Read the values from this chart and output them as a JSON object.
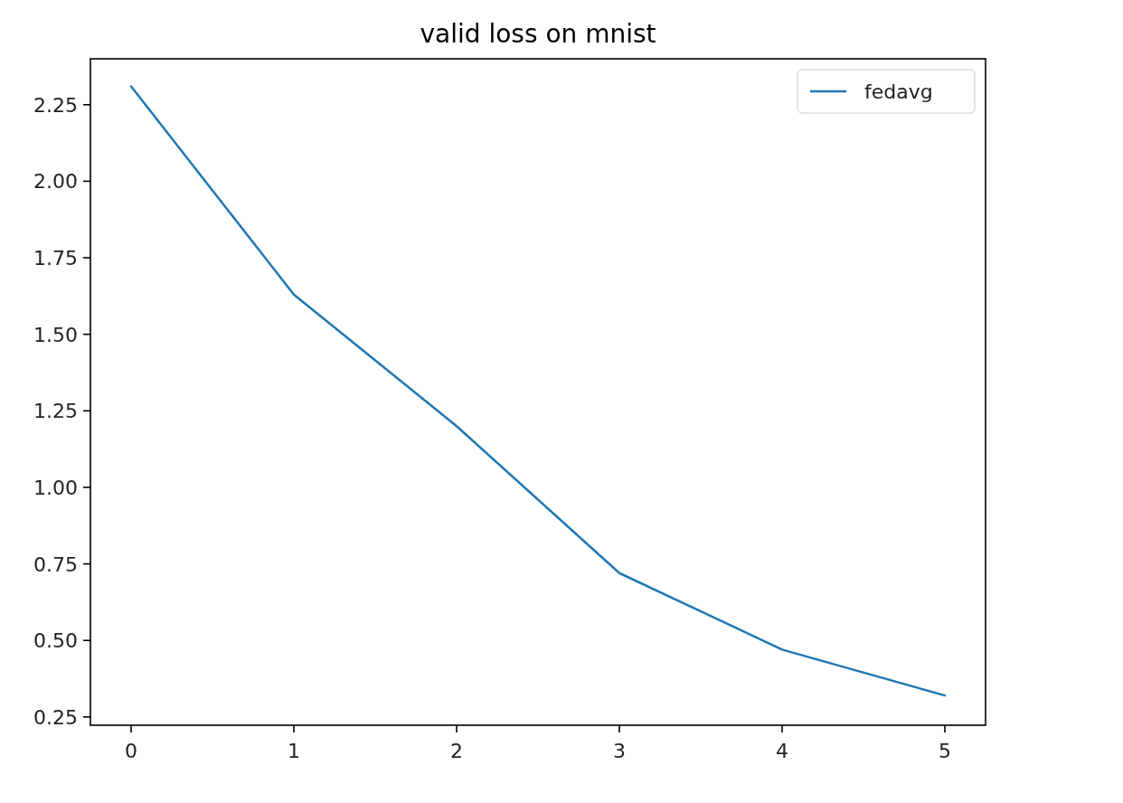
{
  "chart_data": {
    "type": "line",
    "title": "valid loss on mnist",
    "x": [
      0,
      1,
      2,
      3,
      4,
      5
    ],
    "series": [
      {
        "name": "fedavg",
        "color": "#1f77b4",
        "values": [
          2.31,
          1.63,
          1.2,
          0.72,
          0.47,
          0.32
        ]
      }
    ],
    "xlim": [
      -0.25,
      5.25
    ],
    "xticks": [
      0,
      1,
      2,
      3,
      4,
      5
    ],
    "ylim": [
      0.223,
      2.4
    ],
    "yticks": [
      {
        "value": 0.25,
        "label": "0.25"
      },
      {
        "value": 0.5,
        "label": "0.50"
      },
      {
        "value": 0.75,
        "label": "0.75"
      },
      {
        "value": 1,
        "label": "1.00"
      },
      {
        "value": 1.25,
        "label": "1.25"
      },
      {
        "value": 1.5,
        "label": "1.50"
      },
      {
        "value": 1.75,
        "label": "1.75"
      },
      {
        "value": 2,
        "label": "2.00"
      },
      {
        "value": 2.25,
        "label": "2.25"
      }
    ],
    "legend": "top right",
    "grid": false,
    "marker": "none",
    "line_style": "solid"
  }
}
